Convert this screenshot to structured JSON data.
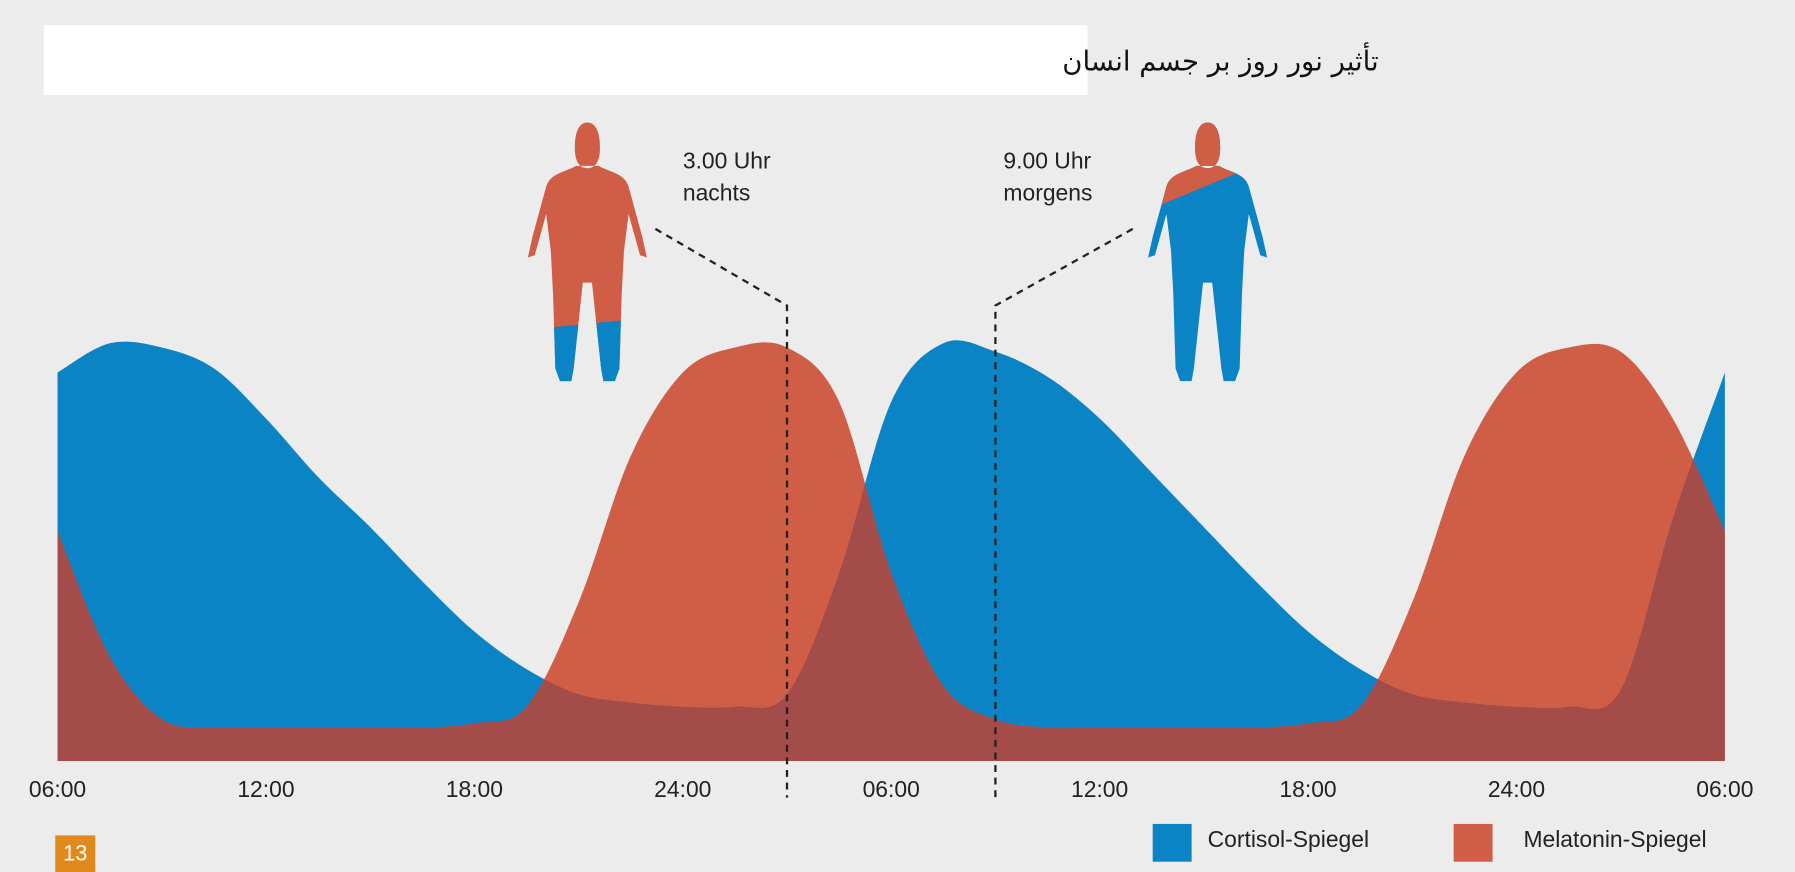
{
  "page_number": "13",
  "chart_data": {
    "type": "area",
    "title": "تأثیر نور روز بر جسم انسان",
    "x": [
      0,
      1.5,
      3,
      4.5,
      6,
      7.5,
      9,
      10.5,
      12,
      13.5,
      15,
      16.5,
      18,
      19.5,
      21,
      22.5,
      24,
      25.5,
      27,
      28.5,
      30,
      31.5,
      33,
      34.5,
      36,
      37.5,
      39,
      40.5,
      42,
      43.5,
      45,
      46.5,
      48
    ],
    "series": [
      {
        "name": "Cortisol-Spiegel",
        "color": "#0b84c6",
        "values": [
          93,
          100,
          99,
          94,
          82,
          68,
          56,
          43,
          31,
          22,
          16,
          14,
          13,
          13,
          16,
          45,
          86,
          100,
          98,
          92,
          82,
          69,
          56,
          43,
          31,
          22,
          16,
          14,
          13,
          13,
          17,
          58,
          93
        ]
      },
      {
        "name": "Melatonin-Spiegel",
        "color": "#d05e47",
        "values": [
          55,
          25,
          10,
          8,
          8,
          8,
          8,
          8,
          9,
          13,
          38,
          73,
          93,
          99,
          99,
          86,
          45,
          18,
          10,
          8,
          8,
          8,
          8,
          8,
          9,
          13,
          38,
          73,
          93,
          99,
          98,
          82,
          55
        ]
      }
    ],
    "overlap_color": "#a34c4a",
    "xlim": [
      0,
      48
    ],
    "xticks": [
      {
        "value": 0,
        "label": "06:00"
      },
      {
        "value": 6,
        "label": "12:00"
      },
      {
        "value": 12,
        "label": "18:00"
      },
      {
        "value": 18,
        "label": "24:00"
      },
      {
        "value": 24,
        "label": "06:00"
      },
      {
        "value": 30,
        "label": "12:00"
      },
      {
        "value": 36,
        "label": "18:00"
      },
      {
        "value": 42,
        "label": "24:00"
      },
      {
        "value": 48,
        "label": "06:00"
      }
    ],
    "ylim": [
      0,
      100
    ],
    "legend": "bottom-right",
    "annotations": [
      {
        "lines": [
          "3.00 Uhr",
          "nachts"
        ],
        "x": 21
      },
      {
        "lines": [
          "9.00 Uhr",
          "morgens"
        ],
        "x": 27
      }
    ]
  }
}
